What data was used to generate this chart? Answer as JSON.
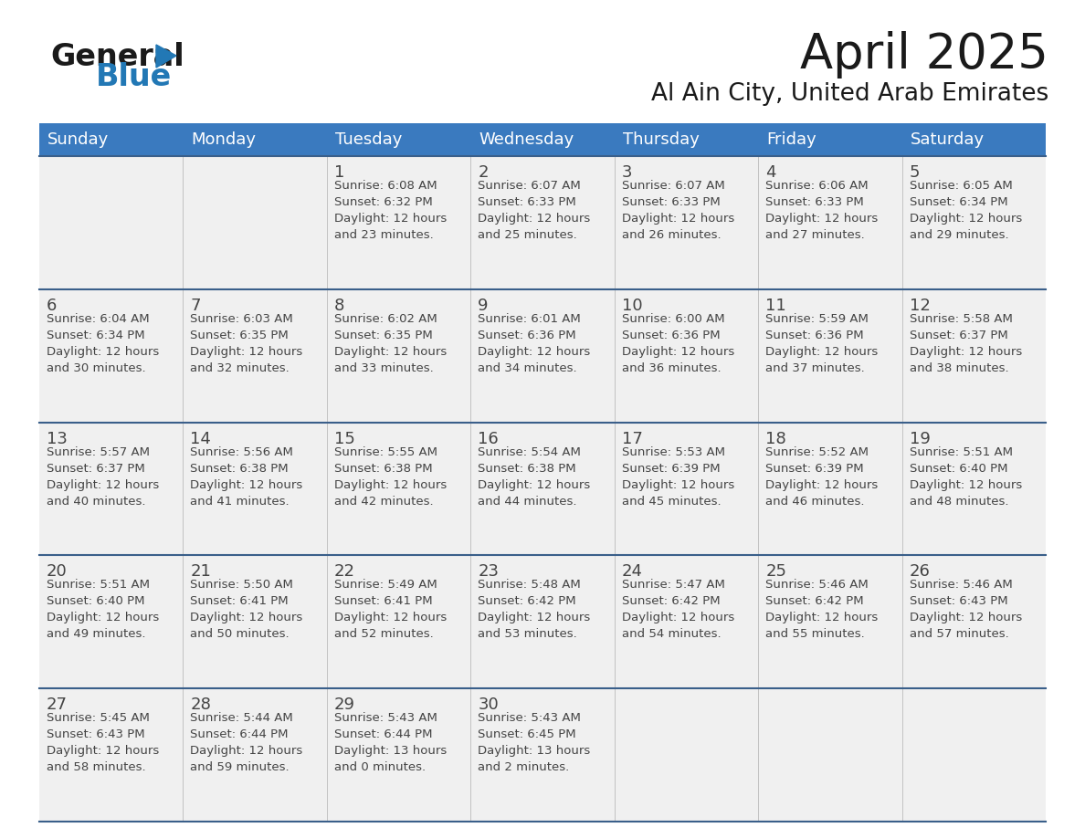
{
  "title": "April 2025",
  "subtitle": "Al Ain City, United Arab Emirates",
  "header_color": "#3a7abf",
  "header_text_color": "#ffffff",
  "cell_bg": "#f0f0f0",
  "day_headers": [
    "Sunday",
    "Monday",
    "Tuesday",
    "Wednesday",
    "Thursday",
    "Friday",
    "Saturday"
  ],
  "calendar_data": [
    [
      {
        "day": "",
        "sunrise": "",
        "sunset": "",
        "daylight": ""
      },
      {
        "day": "",
        "sunrise": "",
        "sunset": "",
        "daylight": ""
      },
      {
        "day": "1",
        "sunrise": "Sunrise: 6:08 AM",
        "sunset": "Sunset: 6:32 PM",
        "daylight": "Daylight: 12 hours\nand 23 minutes."
      },
      {
        "day": "2",
        "sunrise": "Sunrise: 6:07 AM",
        "sunset": "Sunset: 6:33 PM",
        "daylight": "Daylight: 12 hours\nand 25 minutes."
      },
      {
        "day": "3",
        "sunrise": "Sunrise: 6:07 AM",
        "sunset": "Sunset: 6:33 PM",
        "daylight": "Daylight: 12 hours\nand 26 minutes."
      },
      {
        "day": "4",
        "sunrise": "Sunrise: 6:06 AM",
        "sunset": "Sunset: 6:33 PM",
        "daylight": "Daylight: 12 hours\nand 27 minutes."
      },
      {
        "day": "5",
        "sunrise": "Sunrise: 6:05 AM",
        "sunset": "Sunset: 6:34 PM",
        "daylight": "Daylight: 12 hours\nand 29 minutes."
      }
    ],
    [
      {
        "day": "6",
        "sunrise": "Sunrise: 6:04 AM",
        "sunset": "Sunset: 6:34 PM",
        "daylight": "Daylight: 12 hours\nand 30 minutes."
      },
      {
        "day": "7",
        "sunrise": "Sunrise: 6:03 AM",
        "sunset": "Sunset: 6:35 PM",
        "daylight": "Daylight: 12 hours\nand 32 minutes."
      },
      {
        "day": "8",
        "sunrise": "Sunrise: 6:02 AM",
        "sunset": "Sunset: 6:35 PM",
        "daylight": "Daylight: 12 hours\nand 33 minutes."
      },
      {
        "day": "9",
        "sunrise": "Sunrise: 6:01 AM",
        "sunset": "Sunset: 6:36 PM",
        "daylight": "Daylight: 12 hours\nand 34 minutes."
      },
      {
        "day": "10",
        "sunrise": "Sunrise: 6:00 AM",
        "sunset": "Sunset: 6:36 PM",
        "daylight": "Daylight: 12 hours\nand 36 minutes."
      },
      {
        "day": "11",
        "sunrise": "Sunrise: 5:59 AM",
        "sunset": "Sunset: 6:36 PM",
        "daylight": "Daylight: 12 hours\nand 37 minutes."
      },
      {
        "day": "12",
        "sunrise": "Sunrise: 5:58 AM",
        "sunset": "Sunset: 6:37 PM",
        "daylight": "Daylight: 12 hours\nand 38 minutes."
      }
    ],
    [
      {
        "day": "13",
        "sunrise": "Sunrise: 5:57 AM",
        "sunset": "Sunset: 6:37 PM",
        "daylight": "Daylight: 12 hours\nand 40 minutes."
      },
      {
        "day": "14",
        "sunrise": "Sunrise: 5:56 AM",
        "sunset": "Sunset: 6:38 PM",
        "daylight": "Daylight: 12 hours\nand 41 minutes."
      },
      {
        "day": "15",
        "sunrise": "Sunrise: 5:55 AM",
        "sunset": "Sunset: 6:38 PM",
        "daylight": "Daylight: 12 hours\nand 42 minutes."
      },
      {
        "day": "16",
        "sunrise": "Sunrise: 5:54 AM",
        "sunset": "Sunset: 6:38 PM",
        "daylight": "Daylight: 12 hours\nand 44 minutes."
      },
      {
        "day": "17",
        "sunrise": "Sunrise: 5:53 AM",
        "sunset": "Sunset: 6:39 PM",
        "daylight": "Daylight: 12 hours\nand 45 minutes."
      },
      {
        "day": "18",
        "sunrise": "Sunrise: 5:52 AM",
        "sunset": "Sunset: 6:39 PM",
        "daylight": "Daylight: 12 hours\nand 46 minutes."
      },
      {
        "day": "19",
        "sunrise": "Sunrise: 5:51 AM",
        "sunset": "Sunset: 6:40 PM",
        "daylight": "Daylight: 12 hours\nand 48 minutes."
      }
    ],
    [
      {
        "day": "20",
        "sunrise": "Sunrise: 5:51 AM",
        "sunset": "Sunset: 6:40 PM",
        "daylight": "Daylight: 12 hours\nand 49 minutes."
      },
      {
        "day": "21",
        "sunrise": "Sunrise: 5:50 AM",
        "sunset": "Sunset: 6:41 PM",
        "daylight": "Daylight: 12 hours\nand 50 minutes."
      },
      {
        "day": "22",
        "sunrise": "Sunrise: 5:49 AM",
        "sunset": "Sunset: 6:41 PM",
        "daylight": "Daylight: 12 hours\nand 52 minutes."
      },
      {
        "day": "23",
        "sunrise": "Sunrise: 5:48 AM",
        "sunset": "Sunset: 6:42 PM",
        "daylight": "Daylight: 12 hours\nand 53 minutes."
      },
      {
        "day": "24",
        "sunrise": "Sunrise: 5:47 AM",
        "sunset": "Sunset: 6:42 PM",
        "daylight": "Daylight: 12 hours\nand 54 minutes."
      },
      {
        "day": "25",
        "sunrise": "Sunrise: 5:46 AM",
        "sunset": "Sunset: 6:42 PM",
        "daylight": "Daylight: 12 hours\nand 55 minutes."
      },
      {
        "day": "26",
        "sunrise": "Sunrise: 5:46 AM",
        "sunset": "Sunset: 6:43 PM",
        "daylight": "Daylight: 12 hours\nand 57 minutes."
      }
    ],
    [
      {
        "day": "27",
        "sunrise": "Sunrise: 5:45 AM",
        "sunset": "Sunset: 6:43 PM",
        "daylight": "Daylight: 12 hours\nand 58 minutes."
      },
      {
        "day": "28",
        "sunrise": "Sunrise: 5:44 AM",
        "sunset": "Sunset: 6:44 PM",
        "daylight": "Daylight: 12 hours\nand 59 minutes."
      },
      {
        "day": "29",
        "sunrise": "Sunrise: 5:43 AM",
        "sunset": "Sunset: 6:44 PM",
        "daylight": "Daylight: 13 hours\nand 0 minutes."
      },
      {
        "day": "30",
        "sunrise": "Sunrise: 5:43 AM",
        "sunset": "Sunset: 6:45 PM",
        "daylight": "Daylight: 13 hours\nand 2 minutes."
      },
      {
        "day": "",
        "sunrise": "",
        "sunset": "",
        "daylight": ""
      },
      {
        "day": "",
        "sunrise": "",
        "sunset": "",
        "daylight": ""
      },
      {
        "day": "",
        "sunrise": "",
        "sunset": "",
        "daylight": ""
      }
    ]
  ],
  "logo_color_general": "#1a1a1a",
  "logo_color_blue": "#2278b5",
  "logo_triangle_color": "#2278b5",
  "text_color": "#444444",
  "line_color": "#3a5f8a",
  "title_fontsize": 38,
  "subtitle_fontsize": 19,
  "header_fontsize": 13,
  "day_num_fontsize": 13,
  "cell_text_fontsize": 9.5
}
